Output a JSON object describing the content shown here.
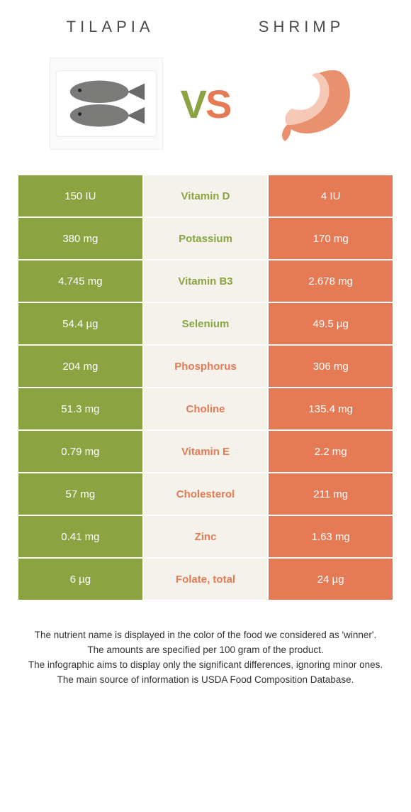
{
  "left_food": {
    "name": "TILAPIA",
    "color": "#8ca342"
  },
  "right_food": {
    "name": "SHRIMP",
    "color": "#e67a54"
  },
  "vs": {
    "v": "V",
    "s": "S"
  },
  "neutral_color": "#f4f2ea",
  "rows": [
    {
      "nutrient": "Vitamin D",
      "left": "150 IU",
      "right": "4 IU",
      "winner": "left"
    },
    {
      "nutrient": "Potassium",
      "left": "380 mg",
      "right": "170 mg",
      "winner": "left"
    },
    {
      "nutrient": "Vitamin B3",
      "left": "4.745 mg",
      "right": "2.678 mg",
      "winner": "left"
    },
    {
      "nutrient": "Selenium",
      "left": "54.4 µg",
      "right": "49.5 µg",
      "winner": "left"
    },
    {
      "nutrient": "Phosphorus",
      "left": "204 mg",
      "right": "306 mg",
      "winner": "right"
    },
    {
      "nutrient": "Choline",
      "left": "51.3 mg",
      "right": "135.4 mg",
      "winner": "right"
    },
    {
      "nutrient": "Vitamin E",
      "left": "0.79 mg",
      "right": "2.2 mg",
      "winner": "right"
    },
    {
      "nutrient": "Cholesterol",
      "left": "57 mg",
      "right": "211 mg",
      "winner": "right"
    },
    {
      "nutrient": "Zinc",
      "left": "0.41 mg",
      "right": "1.63 mg",
      "winner": "right"
    },
    {
      "nutrient": "Folate, total",
      "left": "6 µg",
      "right": "24 µg",
      "winner": "right"
    }
  ],
  "footnotes": [
    "The nutrient name is displayed in the color of the food we considered as 'winner'.",
    "The amounts are specified per 100 gram of the product.",
    "The infographic aims to display only the significant differences, ignoring minor ones.",
    "The main source of information is USDA Food Composition Database."
  ]
}
